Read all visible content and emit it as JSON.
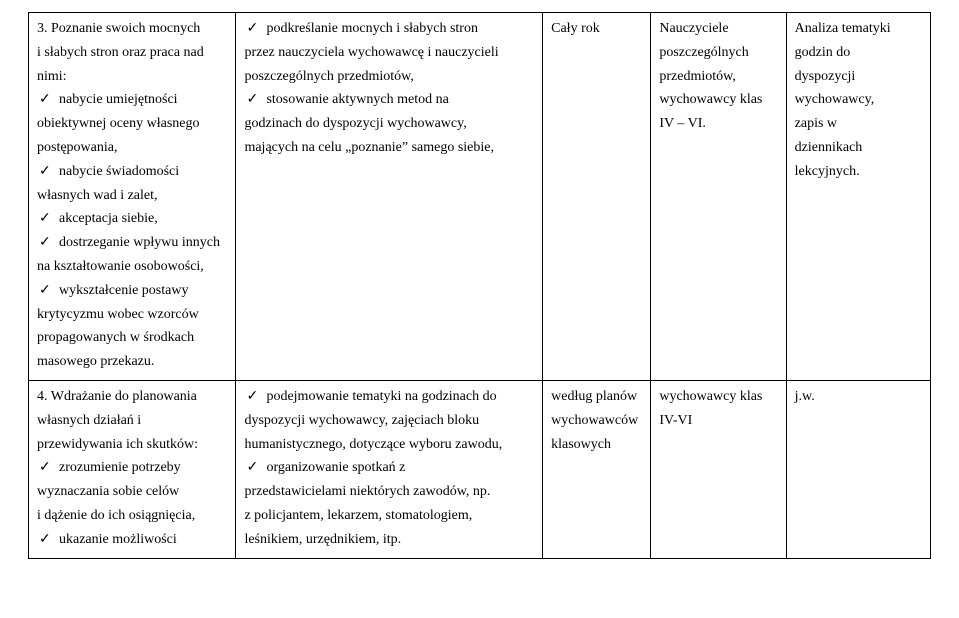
{
  "rows": [
    {
      "c1": [
        {
          "t": "plain",
          "v": "3. Poznanie swoich mocnych"
        },
        {
          "t": "plain",
          "v": "i słabych stron oraz praca nad"
        },
        {
          "t": "plain",
          "v": "nimi:"
        },
        {
          "t": "chk",
          "v": "nabycie umiejętności"
        },
        {
          "t": "plain",
          "v": "obiektywnej oceny własnego"
        },
        {
          "t": "plain",
          "v": "postępowania,"
        },
        {
          "t": "chk",
          "v": "nabycie świadomości"
        },
        {
          "t": "plain",
          "v": "własnych wad i zalet,"
        },
        {
          "t": "chk",
          "v": "akceptacja siebie,"
        },
        {
          "t": "chk",
          "v": "dostrzeganie wpływu innych"
        },
        {
          "t": "plain",
          "v": "na kształtowanie osobowości,"
        },
        {
          "t": "chk",
          "v": "wykształcenie postawy"
        },
        {
          "t": "plain",
          "v": "krytycyzmu wobec wzorców"
        },
        {
          "t": "plain",
          "v": "propagowanych w środkach"
        },
        {
          "t": "plain",
          "v": "masowego przekazu."
        }
      ],
      "c2": [
        {
          "t": "chk",
          "v": "podkreślanie mocnych i słabych stron"
        },
        {
          "t": "plain",
          "v": "przez nauczyciela wychowawcę i nauczycieli"
        },
        {
          "t": "plain",
          "v": "poszczególnych przedmiotów,"
        },
        {
          "t": "chk",
          "v": "stosowanie aktywnych metod na"
        },
        {
          "t": "plain",
          "v": "godzinach do dyspozycji wychowawcy,"
        },
        {
          "t": "plain",
          "v": "mających na celu „poznanie” samego siebie,"
        }
      ],
      "c3": [
        {
          "t": "plain",
          "v": "Cały rok"
        }
      ],
      "c4": [
        {
          "t": "plain",
          "v": "Nauczyciele"
        },
        {
          "t": "plain",
          "v": "poszczególnych"
        },
        {
          "t": "plain",
          "v": "przedmiotów,"
        },
        {
          "t": "plain",
          "v": "wychowawcy klas"
        },
        {
          "t": "plain",
          "v": "IV – VI."
        }
      ],
      "c5": [
        {
          "t": "plain",
          "v": "Analiza tematyki"
        },
        {
          "t": "plain",
          "v": "godzin do"
        },
        {
          "t": "plain",
          "v": "dyspozycji"
        },
        {
          "t": "plain",
          "v": "wychowawcy,"
        },
        {
          "t": "plain",
          "v": "zapis w"
        },
        {
          "t": "plain",
          "v": "dziennikach"
        },
        {
          "t": "plain",
          "v": "lekcyjnych."
        }
      ]
    },
    {
      "c1": [
        {
          "t": "plain",
          "v": "4. Wdrażanie do planowania"
        },
        {
          "t": "plain",
          "v": "własnych działań i"
        },
        {
          "t": "plain",
          "v": "przewidywania ich skutków:"
        },
        {
          "t": "chk",
          "v": "zrozumienie potrzeby"
        },
        {
          "t": "plain",
          "v": "wyznaczania sobie celów"
        },
        {
          "t": "plain",
          "v": "i dążenie do ich osiągnięcia,"
        },
        {
          "t": "chk",
          "v": "ukazanie możliwości"
        }
      ],
      "c2": [
        {
          "t": "chk",
          "v": "podejmowanie tematyki na godzinach do"
        },
        {
          "t": "plain",
          "v": "dyspozycji wychowawcy, zajęciach bloku"
        },
        {
          "t": "plain",
          "v": "humanistycznego, dotyczące wyboru zawodu,"
        },
        {
          "t": "chk",
          "v": "organizowanie spotkań z"
        },
        {
          "t": "plain",
          "v": "przedstawicielami niektórych zawodów, np."
        },
        {
          "t": "plain",
          "v": "z policjantem, lekarzem, stomatologiem,"
        },
        {
          "t": "plain",
          "v": "leśnikiem, urzędnikiem, itp."
        }
      ],
      "c3": [
        {
          "t": "plain",
          "v": "według planów"
        },
        {
          "t": "plain",
          "v": "wychowawców"
        },
        {
          "t": "plain",
          "v": "klasowych"
        }
      ],
      "c4": [
        {
          "t": "plain",
          "v": "wychowawcy klas"
        },
        {
          "t": "plain",
          "v": "IV-VI"
        }
      ],
      "c5": [
        {
          "t": "plain",
          "v": "j.w."
        }
      ]
    }
  ]
}
